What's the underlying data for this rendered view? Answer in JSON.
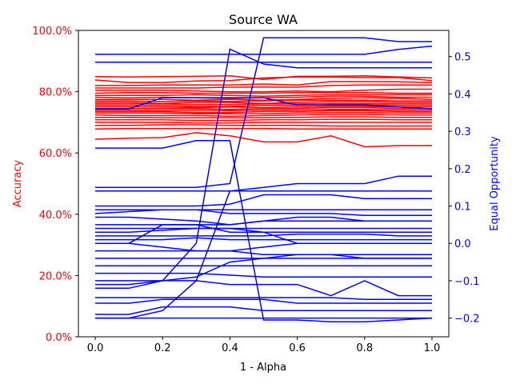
{
  "chart_data": {
    "type": "line",
    "title": "Source WA",
    "xlabel": "1 - Alpha",
    "ylabel_left": "Accuracy",
    "ylabel_right": "Equal Opportunity",
    "colors": {
      "left": "#ff0000",
      "right": "#0000ff",
      "axis": "#000000"
    },
    "x": [
      0.0,
      0.1,
      0.2,
      0.3,
      0.4,
      0.5,
      0.6,
      0.7,
      0.8,
      0.9,
      1.0
    ],
    "xlim": [
      -0.05,
      1.05
    ],
    "ylim_left": [
      0.0,
      1.0
    ],
    "ylim_right": [
      -0.25,
      0.57
    ],
    "xticks": [
      "0.0",
      "0.2",
      "0.4",
      "0.6",
      "0.8",
      "1.0"
    ],
    "xtick_values": [
      0.0,
      0.2,
      0.4,
      0.6,
      0.8,
      1.0
    ],
    "yticks_left": [
      "0.0%",
      "20.0%",
      "40.0%",
      "60.0%",
      "80.0%",
      "100.0%"
    ],
    "ytick_values_left": [
      0.0,
      0.2,
      0.4,
      0.6,
      0.8,
      1.0
    ],
    "yticks_right": [
      "−0.2",
      "−0.1",
      "0.0",
      "0.1",
      "0.2",
      "0.3",
      "0.4",
      "0.5"
    ],
    "ytick_values_right": [
      -0.2,
      -0.1,
      0.0,
      0.1,
      0.2,
      0.3,
      0.4,
      0.5
    ],
    "series_left": [
      {
        "values": [
          0.849,
          0.848,
          0.849,
          0.85,
          0.852,
          0.84,
          0.85,
          0.85,
          0.852,
          0.848,
          0.845
        ]
      },
      {
        "values": [
          0.838,
          0.83,
          0.83,
          0.835,
          0.836,
          0.845,
          0.848,
          0.848,
          0.846,
          0.846,
          0.836
        ]
      },
      {
        "values": [
          0.82,
          0.82,
          0.822,
          0.822,
          0.822,
          0.825,
          0.822,
          0.833,
          0.833,
          0.832,
          0.83
        ]
      },
      {
        "values": [
          0.812,
          0.812,
          0.812,
          0.812,
          0.815,
          0.815,
          0.815,
          0.82,
          0.822,
          0.822,
          0.822
        ]
      },
      {
        "values": [
          0.805,
          0.805,
          0.805,
          0.802,
          0.8,
          0.8,
          0.802,
          0.8,
          0.805,
          0.808,
          0.808
        ]
      },
      {
        "values": [
          0.795,
          0.797,
          0.797,
          0.795,
          0.795,
          0.795,
          0.797,
          0.797,
          0.797,
          0.795,
          0.795
        ]
      },
      {
        "values": [
          0.788,
          0.788,
          0.788,
          0.79,
          0.788,
          0.785,
          0.788,
          0.79,
          0.79,
          0.79,
          0.79
        ]
      },
      {
        "values": [
          0.782,
          0.78,
          0.782,
          0.78,
          0.778,
          0.78,
          0.782,
          0.785,
          0.785,
          0.782,
          0.782
        ]
      },
      {
        "values": [
          0.775,
          0.775,
          0.775,
          0.772,
          0.775,
          0.772,
          0.775,
          0.778,
          0.78,
          0.778,
          0.775
        ]
      },
      {
        "values": [
          0.77,
          0.77,
          0.768,
          0.77,
          0.768,
          0.77,
          0.772,
          0.772,
          0.772,
          0.77,
          0.77
        ]
      },
      {
        "values": [
          0.765,
          0.765,
          0.762,
          0.765,
          0.765,
          0.762,
          0.765,
          0.768,
          0.768,
          0.765,
          0.765
        ]
      },
      {
        "values": [
          0.76,
          0.76,
          0.76,
          0.758,
          0.758,
          0.76,
          0.76,
          0.762,
          0.762,
          0.76,
          0.76
        ]
      },
      {
        "values": [
          0.755,
          0.755,
          0.755,
          0.752,
          0.752,
          0.755,
          0.755,
          0.758,
          0.758,
          0.755,
          0.755
        ]
      },
      {
        "values": [
          0.75,
          0.75,
          0.75,
          0.748,
          0.75,
          0.748,
          0.75,
          0.752,
          0.752,
          0.75,
          0.75
        ]
      },
      {
        "values": [
          0.745,
          0.745,
          0.745,
          0.745,
          0.742,
          0.745,
          0.745,
          0.748,
          0.748,
          0.745,
          0.745
        ]
      },
      {
        "values": [
          0.74,
          0.74,
          0.738,
          0.74,
          0.738,
          0.74,
          0.74,
          0.742,
          0.742,
          0.74,
          0.74
        ]
      },
      {
        "values": [
          0.735,
          0.735,
          0.735,
          0.732,
          0.732,
          0.735,
          0.735,
          0.738,
          0.738,
          0.735,
          0.735
        ]
      },
      {
        "values": [
          0.73,
          0.73,
          0.73,
          0.728,
          0.728,
          0.728,
          0.73,
          0.732,
          0.732,
          0.73,
          0.73
        ]
      },
      {
        "values": [
          0.724,
          0.722,
          0.722,
          0.722,
          0.72,
          0.722,
          0.724,
          0.726,
          0.726,
          0.724,
          0.724
        ]
      },
      {
        "values": [
          0.716,
          0.716,
          0.715,
          0.715,
          0.715,
          0.715,
          0.716,
          0.718,
          0.718,
          0.716,
          0.716
        ]
      },
      {
        "values": [
          0.708,
          0.708,
          0.708,
          0.706,
          0.706,
          0.708,
          0.708,
          0.71,
          0.71,
          0.708,
          0.708
        ]
      },
      {
        "values": [
          0.7,
          0.7,
          0.7,
          0.698,
          0.698,
          0.7,
          0.7,
          0.7,
          0.7,
          0.7,
          0.7
        ]
      },
      {
        "values": [
          0.69,
          0.69,
          0.692,
          0.692,
          0.69,
          0.69,
          0.69,
          0.688,
          0.688,
          0.688,
          0.688
        ]
      },
      {
        "values": [
          0.678,
          0.68,
          0.68,
          0.68,
          0.68,
          0.68,
          0.678,
          0.678,
          0.678,
          0.678,
          0.678
        ]
      },
      {
        "values": [
          0.645,
          0.648,
          0.65,
          0.666,
          0.656,
          0.636,
          0.636,
          0.656,
          0.62,
          0.624,
          0.624
        ]
      }
    ],
    "series_right": [
      {
        "values": [
          0.506,
          0.506,
          0.506,
          0.506,
          0.506,
          0.506,
          0.506,
          0.506,
          0.506,
          0.519,
          0.528
        ]
      },
      {
        "values": [
          0.485,
          0.485,
          0.485,
          0.485,
          0.485,
          0.485,
          0.485,
          0.485,
          0.485,
          0.485,
          0.485
        ]
      },
      {
        "values": [
          0.15,
          0.15,
          0.15,
          0.15,
          0.16,
          0.55,
          0.55,
          0.55,
          0.55,
          0.54,
          0.54
        ]
      },
      {
        "values": [
          0.36,
          0.36,
          0.39,
          0.39,
          0.39,
          0.39,
          0.37,
          0.37,
          0.37,
          0.365,
          0.36
        ]
      },
      {
        "values": [
          0.255,
          0.255,
          0.255,
          0.275,
          0.275,
          -0.205,
          -0.205,
          -0.21,
          -0.21,
          -0.205,
          -0.2
        ]
      },
      {
        "values": [
          0.14,
          0.14,
          0.14,
          0.14,
          0.14,
          0.14,
          0.14,
          0.14,
          0.14,
          0.14,
          0.14
        ]
      },
      {
        "values": [
          -0.2,
          -0.2,
          -0.18,
          -0.1,
          0.14,
          0.15,
          0.16,
          0.16,
          0.16,
          0.18,
          0.18
        ]
      },
      {
        "values": [
          -0.11,
          -0.11,
          -0.1,
          0.0,
          0.52,
          0.48,
          0.47,
          0.47,
          0.47,
          0.47,
          0.47
        ]
      },
      {
        "values": [
          0.1,
          0.1,
          0.1,
          0.1,
          0.105,
          0.13,
          0.13,
          0.13,
          0.12,
          0.12,
          0.12
        ]
      },
      {
        "values": [
          0.09,
          0.09,
          0.09,
          0.09,
          0.09,
          0.09,
          0.09,
          0.09,
          0.09,
          0.09,
          0.09
        ]
      },
      {
        "values": [
          0.08,
          0.085,
          0.09,
          0.09,
          0.08,
          0.08,
          0.08,
          0.08,
          0.075,
          0.075,
          0.075
        ]
      },
      {
        "values": [
          0.07,
          0.07,
          0.065,
          0.06,
          0.05,
          0.06,
          0.07,
          0.07,
          0.06,
          0.06,
          0.06
        ]
      },
      {
        "values": [
          0.05,
          0.05,
          0.05,
          0.05,
          0.05,
          0.06,
          0.06,
          0.06,
          0.06,
          0.06,
          0.06
        ]
      },
      {
        "values": [
          0.04,
          0.04,
          0.04,
          0.04,
          0.04,
          0.04,
          0.04,
          0.04,
          0.04,
          0.04,
          0.04
        ]
      },
      {
        "values": [
          0.03,
          0.03,
          0.035,
          0.04,
          0.04,
          0.03,
          0.03,
          0.03,
          0.03,
          0.03,
          0.03
        ]
      },
      {
        "values": [
          0.02,
          0.02,
          0.02,
          0.02,
          0.02,
          0.02,
          0.025,
          0.025,
          0.025,
          0.02,
          0.02
        ]
      },
      {
        "values": [
          0.01,
          0.01,
          0.01,
          0.015,
          0.01,
          0.01,
          0.01,
          0.01,
          0.01,
          0.01,
          0.01
        ]
      },
      {
        "values": [
          0.0,
          0.0,
          -0.01,
          -0.02,
          -0.02,
          -0.01,
          0.0,
          0.0,
          0.0,
          0.0,
          0.0
        ]
      },
      {
        "values": [
          -0.02,
          -0.02,
          -0.02,
          -0.02,
          -0.02,
          -0.03,
          -0.03,
          -0.03,
          -0.03,
          -0.03,
          -0.03
        ]
      },
      {
        "values": [
          -0.04,
          -0.04,
          -0.04,
          -0.04,
          -0.04,
          -0.04,
          -0.04,
          -0.04,
          -0.04,
          -0.04,
          -0.04
        ]
      },
      {
        "values": [
          -0.06,
          -0.06,
          -0.06,
          -0.06,
          -0.06,
          -0.06,
          -0.06,
          -0.06,
          -0.06,
          -0.06,
          -0.06
        ]
      },
      {
        "values": [
          -0.08,
          -0.08,
          -0.08,
          -0.08,
          -0.085,
          -0.09,
          -0.09,
          -0.09,
          -0.09,
          -0.09,
          -0.09
        ]
      },
      {
        "values": [
          -0.1,
          -0.1,
          -0.1,
          -0.1,
          -0.11,
          -0.11,
          -0.11,
          -0.14,
          -0.1,
          -0.14,
          -0.14
        ]
      },
      {
        "values": [
          -0.145,
          -0.145,
          -0.145,
          -0.145,
          -0.145,
          -0.145,
          -0.145,
          -0.145,
          -0.15,
          -0.15,
          -0.15
        ]
      },
      {
        "values": [
          -0.16,
          -0.16,
          -0.15,
          -0.15,
          -0.15,
          -0.15,
          -0.16,
          -0.16,
          -0.16,
          -0.16,
          -0.16
        ]
      },
      {
        "values": [
          -0.19,
          -0.19,
          -0.17,
          -0.17,
          -0.17,
          -0.18,
          -0.18,
          -0.18,
          -0.18,
          -0.18,
          -0.18
        ]
      },
      {
        "values": [
          -0.2,
          -0.2,
          -0.2,
          -0.2,
          -0.2,
          -0.2,
          -0.2,
          -0.2,
          -0.2,
          -0.2,
          -0.2
        ]
      },
      {
        "values": [
          -0.12,
          -0.12,
          -0.1,
          -0.09,
          -0.05,
          -0.04,
          -0.03,
          -0.03,
          -0.04,
          -0.04,
          -0.04
        ]
      },
      {
        "values": [
          0.0,
          0.0,
          0.05,
          0.05,
          0.03,
          0.03,
          0.0,
          0.0,
          0.0,
          0.0,
          0.0
        ]
      }
    ]
  }
}
